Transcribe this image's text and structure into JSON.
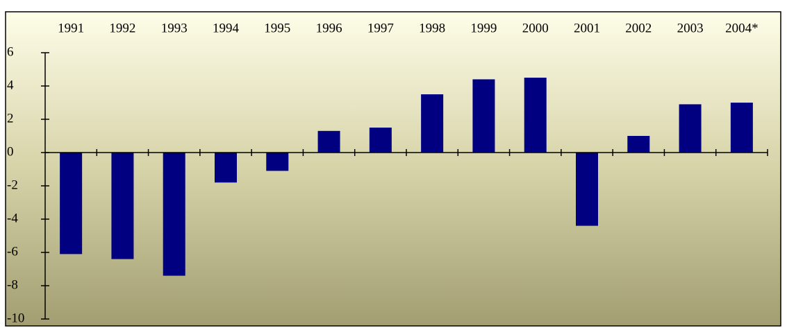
{
  "chart_data": {
    "type": "bar",
    "categories": [
      "1991",
      "1992",
      "1993",
      "1994",
      "1995",
      "1996",
      "1997",
      "1998",
      "1999",
      "2000",
      "2001",
      "2002",
      "2003",
      "2004*"
    ],
    "values": [
      -6.1,
      -6.4,
      -7.4,
      -1.8,
      -1.1,
      1.3,
      1.5,
      3.5,
      4.4,
      4.5,
      -4.4,
      1.0,
      2.9,
      3.0
    ],
    "color": "#000080",
    "ylim": [
      -10,
      6
    ],
    "yticks": [
      -10,
      -8,
      -6,
      -4,
      -2,
      0,
      2,
      4,
      6
    ],
    "grid": false
  }
}
